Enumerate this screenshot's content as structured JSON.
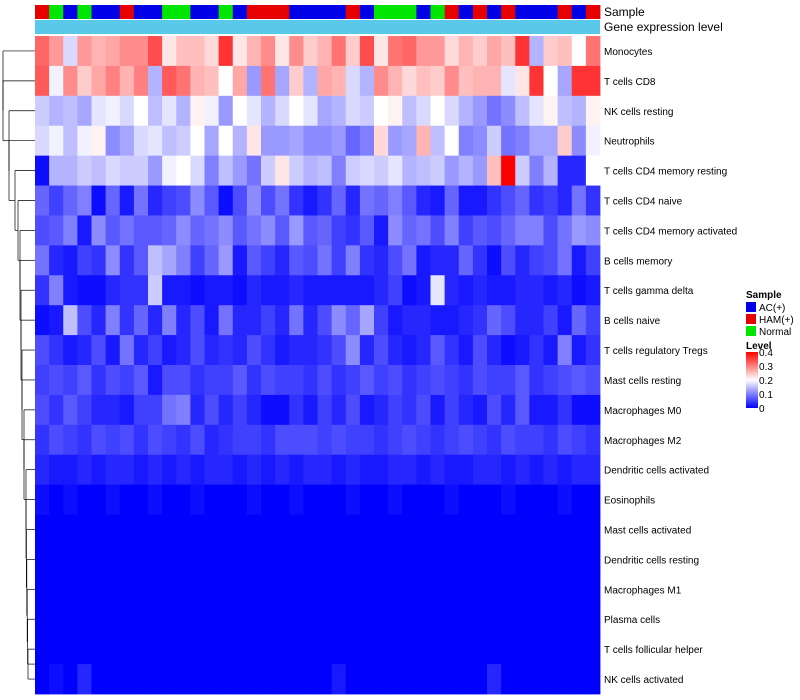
{
  "chart_data": {
    "type": "heatmap",
    "title": "",
    "annotation_labels": {
      "sample": "Sample",
      "gene_expression": "Gene expression level"
    },
    "rows": [
      "Monocytes",
      "T cells CD8",
      "NK cells resting",
      "Neutrophils",
      "T cells CD4 memory resting",
      "T cells CD4 naive",
      "T cells CD4 memory activated",
      "B cells memory",
      "T cells gamma delta",
      "B cells naive",
      "T cells regulatory  Tregs",
      "Mast cells resting",
      "Macrophages M0",
      "Macrophages M2",
      "Dendritic cells activated",
      "Eosinophils",
      "Mast cells activated",
      "Dendritic cells resting",
      "Macrophages M1",
      "Plasma cells",
      "T cells follicular helper",
      "NK cells activated"
    ],
    "column_samples": [
      "HAM(+)",
      "Normal",
      "AC(+)",
      "Normal",
      "AC(+)",
      "AC(+)",
      "HAM(+)",
      "AC(+)",
      "AC(+)",
      "Normal",
      "Normal",
      "AC(+)",
      "AC(+)",
      "Normal",
      "AC(+)",
      "HAM(+)",
      "HAM(+)",
      "HAM(+)",
      "AC(+)",
      "AC(+)",
      "AC(+)",
      "AC(+)",
      "HAM(+)",
      "AC(+)",
      "Normal",
      "Normal",
      "Normal",
      "AC(+)",
      "Normal",
      "HAM(+)",
      "AC(+)",
      "HAM(+)",
      "AC(+)",
      "HAM(+)",
      "AC(+)",
      "AC(+)",
      "AC(+)",
      "HAM(+)",
      "AC(+)",
      "HAM(+)"
    ],
    "values": [
      [
        0.32,
        0.28,
        0.17,
        0.28,
        0.26,
        0.27,
        0.29,
        0.29,
        0.34,
        0.22,
        0.25,
        0.25,
        0.23,
        0.36,
        0.22,
        0.26,
        0.29,
        0.22,
        0.29,
        0.24,
        0.26,
        0.31,
        0.24,
        0.34,
        0.22,
        0.31,
        0.32,
        0.28,
        0.28,
        0.23,
        0.26,
        0.24,
        0.27,
        0.25,
        0.36,
        0.14,
        0.24,
        0.25,
        0.2,
        0.31
      ],
      [
        0.33,
        0.19,
        0.29,
        0.24,
        0.27,
        0.3,
        0.26,
        0.3,
        0.14,
        0.33,
        0.31,
        0.26,
        0.25,
        0.2,
        0.27,
        0.12,
        0.31,
        0.13,
        0.24,
        0.14,
        0.27,
        0.26,
        0.17,
        0.14,
        0.29,
        0.26,
        0.23,
        0.25,
        0.24,
        0.29,
        0.25,
        0.26,
        0.26,
        0.18,
        0.22,
        0.36,
        0.2,
        0.13,
        0.36,
        0.36
      ],
      [
        0.16,
        0.14,
        0.15,
        0.13,
        0.18,
        0.19,
        0.17,
        0.2,
        0.15,
        0.18,
        0.14,
        0.21,
        0.19,
        0.12,
        0.2,
        0.18,
        0.14,
        0.17,
        0.2,
        0.18,
        0.13,
        0.14,
        0.17,
        0.16,
        0.2,
        0.21,
        0.15,
        0.17,
        0.2,
        0.17,
        0.14,
        0.12,
        0.09,
        0.11,
        0.15,
        0.18,
        0.21,
        0.15,
        0.14,
        0.21
      ],
      [
        0.17,
        0.19,
        0.15,
        0.19,
        0.21,
        0.11,
        0.13,
        0.17,
        0.18,
        0.15,
        0.16,
        0.2,
        0.13,
        0.2,
        0.14,
        0.22,
        0.12,
        0.12,
        0.13,
        0.11,
        0.11,
        0.12,
        0.08,
        0.1,
        0.23,
        0.12,
        0.13,
        0.26,
        0.15,
        0.2,
        0.1,
        0.11,
        0.16,
        0.09,
        0.1,
        0.13,
        0.13,
        0.24,
        0.11,
        0.19
      ],
      [
        0.01,
        0.14,
        0.14,
        0.16,
        0.15,
        0.17,
        0.16,
        0.16,
        0.12,
        0.19,
        0.2,
        0.17,
        0.1,
        0.15,
        0.12,
        0.09,
        0.16,
        0.22,
        0.16,
        0.14,
        0.15,
        0.1,
        0.16,
        0.17,
        0.16,
        0.18,
        0.14,
        0.15,
        0.16,
        0.12,
        0.14,
        0.12,
        0.25,
        0.4,
        0.16,
        0.1,
        0.14,
        0.03,
        0.03,
        0.2
      ],
      [
        0.08,
        0.05,
        0.08,
        0.1,
        0.01,
        0.08,
        0.02,
        0.09,
        0.03,
        0.05,
        0.06,
        0.11,
        0.07,
        0.01,
        0.06,
        0.11,
        0.06,
        0.09,
        0.04,
        0.02,
        0.04,
        0.08,
        0.03,
        0.09,
        0.08,
        0.1,
        0.07,
        0.03,
        0.02,
        0.08,
        0.02,
        0.02,
        0.04,
        0.06,
        0.08,
        0.04,
        0.05,
        0.03,
        0.09,
        0.04
      ],
      [
        0.06,
        0.07,
        0.1,
        0.02,
        0.11,
        0.07,
        0.09,
        0.07,
        0.07,
        0.08,
        0.11,
        0.08,
        0.09,
        0.11,
        0.07,
        0.09,
        0.11,
        0.07,
        0.12,
        0.07,
        0.08,
        0.05,
        0.04,
        0.07,
        0.02,
        0.11,
        0.08,
        0.09,
        0.06,
        0.1,
        0.05,
        0.07,
        0.06,
        0.08,
        0.1,
        0.1,
        0.06,
        0.09,
        0.12,
        0.11
      ],
      [
        0.09,
        0.03,
        0.02,
        0.05,
        0.04,
        0.11,
        0.04,
        0.07,
        0.15,
        0.13,
        0.1,
        0.05,
        0.08,
        0.12,
        0.02,
        0.07,
        0.05,
        0.03,
        0.07,
        0.06,
        0.09,
        0.05,
        0.1,
        0.04,
        0.03,
        0.06,
        0.09,
        0.02,
        0.03,
        0.03,
        0.08,
        0.04,
        0.01,
        0.06,
        0.03,
        0.05,
        0.06,
        0.09,
        0.02,
        0.05
      ],
      [
        0.04,
        0.1,
        0.02,
        0.01,
        0.01,
        0.03,
        0.04,
        0.04,
        0.16,
        0.02,
        0.02,
        0.01,
        0.02,
        0.02,
        0.01,
        0.03,
        0.02,
        0.02,
        0.03,
        0.02,
        0.02,
        0.02,
        0.02,
        0.02,
        0.03,
        0.05,
        0.01,
        0.02,
        0.18,
        0.03,
        0.02,
        0.03,
        0.02,
        0.02,
        0.03,
        0.03,
        0.02,
        0.03,
        0.01,
        0.02
      ],
      [
        0.01,
        0.02,
        0.15,
        0.06,
        0.03,
        0.1,
        0.04,
        0.08,
        0.03,
        0.1,
        0.03,
        0.06,
        0.02,
        0.09,
        0.03,
        0.03,
        0.05,
        0.03,
        0.09,
        0.03,
        0.06,
        0.11,
        0.08,
        0.13,
        0.05,
        0.02,
        0.03,
        0.03,
        0.02,
        0.02,
        0.03,
        0.04,
        0.08,
        0.06,
        0.03,
        0.03,
        0.05,
        0.02,
        0.08,
        0.05
      ],
      [
        0.06,
        0.04,
        0.02,
        0.03,
        0.06,
        0.02,
        0.09,
        0.03,
        0.05,
        0.02,
        0.03,
        0.06,
        0.03,
        0.04,
        0.03,
        0.06,
        0.04,
        0.02,
        0.03,
        0.03,
        0.04,
        0.06,
        0.11,
        0.03,
        0.06,
        0.03,
        0.02,
        0.03,
        0.07,
        0.04,
        0.02,
        0.06,
        0.03,
        0.01,
        0.02,
        0.04,
        0.02,
        0.1,
        0.02,
        0.04
      ],
      [
        0.05,
        0.06,
        0.05,
        0.07,
        0.04,
        0.06,
        0.05,
        0.07,
        0.02,
        0.06,
        0.06,
        0.04,
        0.05,
        0.05,
        0.07,
        0.04,
        0.06,
        0.05,
        0.05,
        0.04,
        0.06,
        0.04,
        0.05,
        0.07,
        0.05,
        0.06,
        0.04,
        0.05,
        0.06,
        0.05,
        0.04,
        0.06,
        0.05,
        0.05,
        0.07,
        0.04,
        0.05,
        0.06,
        0.07,
        0.06
      ],
      [
        0.06,
        0.04,
        0.07,
        0.05,
        0.03,
        0.03,
        0.02,
        0.05,
        0.05,
        0.09,
        0.1,
        0.03,
        0.06,
        0.03,
        0.05,
        0.03,
        0.01,
        0.01,
        0.04,
        0.02,
        0.05,
        0.03,
        0.06,
        0.02,
        0.03,
        0.05,
        0.04,
        0.06,
        0.02,
        0.05,
        0.03,
        0.02,
        0.06,
        0.03,
        0.07,
        0.02,
        0.02,
        0.04,
        0.01,
        0.01
      ],
      [
        0.04,
        0.06,
        0.05,
        0.04,
        0.06,
        0.05,
        0.06,
        0.04,
        0.06,
        0.05,
        0.04,
        0.06,
        0.03,
        0.04,
        0.05,
        0.05,
        0.04,
        0.06,
        0.06,
        0.06,
        0.05,
        0.06,
        0.05,
        0.05,
        0.04,
        0.05,
        0.06,
        0.05,
        0.04,
        0.05,
        0.06,
        0.05,
        0.04,
        0.06,
        0.05,
        0.05,
        0.04,
        0.06,
        0.05,
        0.04
      ],
      [
        0.03,
        0.02,
        0.02,
        0.03,
        0.02,
        0.03,
        0.03,
        0.02,
        0.03,
        0.02,
        0.03,
        0.02,
        0.03,
        0.03,
        0.02,
        0.03,
        0.02,
        0.03,
        0.02,
        0.03,
        0.03,
        0.02,
        0.03,
        0.02,
        0.02,
        0.03,
        0.03,
        0.02,
        0.03,
        0.02,
        0.02,
        0.03,
        0.03,
        0.02,
        0.03,
        0.02,
        0.03,
        0.02,
        0.03,
        0.03
      ],
      [
        0.01,
        0.0,
        0.01,
        0.0,
        0.0,
        0.01,
        0.0,
        0.0,
        0.01,
        0.0,
        0.0,
        0.01,
        0.0,
        0.0,
        0.0,
        0.01,
        0.0,
        0.0,
        0.01,
        0.0,
        0.0,
        0.0,
        0.01,
        0.0,
        0.0,
        0.01,
        0.0,
        0.0,
        0.0,
        0.01,
        0.0,
        0.0,
        0.0,
        0.01,
        0.0,
        0.0,
        0.0,
        0.01,
        0.0,
        0.0
      ],
      [
        0.0,
        0.0,
        0.0,
        0.0,
        0.0,
        0.0,
        0.0,
        0.0,
        0.0,
        0.0,
        0.0,
        0.0,
        0.0,
        0.0,
        0.0,
        0.0,
        0.0,
        0.0,
        0.0,
        0.0,
        0.0,
        0.0,
        0.0,
        0.0,
        0.0,
        0.0,
        0.0,
        0.0,
        0.0,
        0.0,
        0.0,
        0.0,
        0.0,
        0.0,
        0.0,
        0.0,
        0.0,
        0.0,
        0.0,
        0.0
      ],
      [
        0.0,
        0.0,
        0.0,
        0.0,
        0.0,
        0.0,
        0.0,
        0.0,
        0.0,
        0.0,
        0.0,
        0.0,
        0.0,
        0.0,
        0.0,
        0.0,
        0.0,
        0.0,
        0.0,
        0.0,
        0.0,
        0.0,
        0.0,
        0.0,
        0.0,
        0.0,
        0.0,
        0.0,
        0.0,
        0.0,
        0.0,
        0.0,
        0.0,
        0.0,
        0.0,
        0.0,
        0.0,
        0.0,
        0.0,
        0.0
      ],
      [
        0.0,
        0.0,
        0.0,
        0.0,
        0.0,
        0.0,
        0.0,
        0.0,
        0.0,
        0.0,
        0.0,
        0.0,
        0.0,
        0.0,
        0.0,
        0.0,
        0.0,
        0.0,
        0.0,
        0.0,
        0.0,
        0.0,
        0.0,
        0.0,
        0.0,
        0.0,
        0.0,
        0.0,
        0.0,
        0.0,
        0.0,
        0.0,
        0.0,
        0.0,
        0.0,
        0.0,
        0.0,
        0.0,
        0.0,
        0.0
      ],
      [
        0.0,
        0.0,
        0.0,
        0.0,
        0.0,
        0.0,
        0.0,
        0.0,
        0.0,
        0.0,
        0.0,
        0.0,
        0.0,
        0.0,
        0.0,
        0.0,
        0.0,
        0.0,
        0.0,
        0.0,
        0.0,
        0.0,
        0.0,
        0.0,
        0.0,
        0.0,
        0.0,
        0.0,
        0.0,
        0.0,
        0.0,
        0.0,
        0.0,
        0.0,
        0.0,
        0.0,
        0.0,
        0.0,
        0.0,
        0.0
      ],
      [
        0.0,
        0.0,
        0.0,
        0.0,
        0.0,
        0.0,
        0.0,
        0.0,
        0.0,
        0.0,
        0.0,
        0.0,
        0.0,
        0.0,
        0.0,
        0.0,
        0.0,
        0.0,
        0.0,
        0.0,
        0.0,
        0.0,
        0.0,
        0.0,
        0.0,
        0.0,
        0.0,
        0.0,
        0.0,
        0.0,
        0.0,
        0.0,
        0.0,
        0.0,
        0.0,
        0.0,
        0.0,
        0.0,
        0.0,
        0.0
      ],
      [
        0.0,
        0.01,
        0.0,
        0.03,
        0.0,
        0.0,
        0.0,
        0.0,
        0.0,
        0.0,
        0.0,
        0.0,
        0.0,
        0.0,
        0.0,
        0.0,
        0.0,
        0.0,
        0.0,
        0.0,
        0.0,
        0.02,
        0.0,
        0.0,
        0.0,
        0.0,
        0.0,
        0.0,
        0.0,
        0.0,
        0.0,
        0.0,
        0.03,
        0.0,
        0.0,
        0.0,
        0.0,
        0.0,
        0.0,
        0.0
      ]
    ],
    "legend_sample": {
      "title": "Sample",
      "items": [
        {
          "label": "AC(+)",
          "color": "#0000e6"
        },
        {
          "label": "HAM(+)",
          "color": "#e60000"
        },
        {
          "label": "Normal",
          "color": "#00e600"
        }
      ]
    },
    "legend_level": {
      "title": "Level",
      "ticks": [
        "0.4",
        "0.3",
        "0.2",
        "0.1",
        "0"
      ],
      "tick_values": [
        0.4,
        0.3,
        0.2,
        0.1,
        0
      ],
      "range": [
        0,
        0.4
      ],
      "colors": {
        "low": "#0000ff",
        "mid": "#ffffff",
        "high": "#ff0000"
      }
    },
    "gene_expression_color": "#5ac8e8"
  }
}
